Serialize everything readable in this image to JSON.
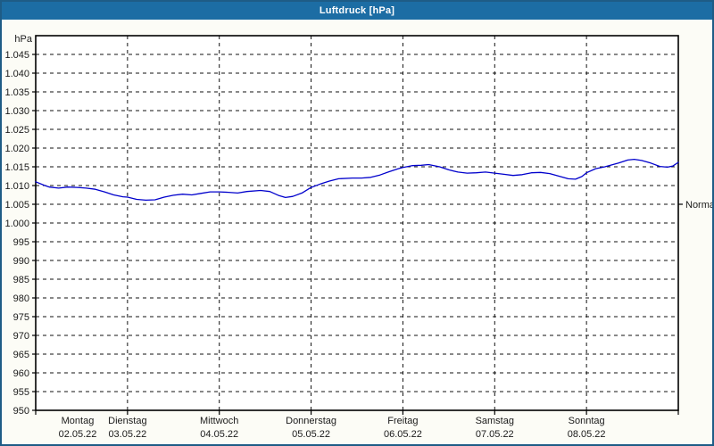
{
  "window": {
    "title": "Luftdruck [hPa]"
  },
  "colors": {
    "titlebar": "#1c6da4",
    "window_border": "#1e5c86",
    "window_bg": "#fcfcf6",
    "plot_bg": "#ffffff",
    "frame": "#000000",
    "grid": "#111111",
    "curve": "#0000cc",
    "text": "#1a1a1a",
    "title_text": "#ffffff"
  },
  "chart_data": {
    "type": "line",
    "title": "Luftdruck [hPa]",
    "ylabel": "hPa",
    "y_axis": {
      "min": 950,
      "max": 1050,
      "label_step": 5,
      "labeled_from": 950,
      "labeled_to": 1045,
      "number_format": "german-thousands-dot"
    },
    "x_axis": {
      "days": [
        {
          "name": "Montag",
          "date": "02.05.22"
        },
        {
          "name": "Dienstag",
          "date": "03.05.22"
        },
        {
          "name": "Mittwoch",
          "date": "04.05.22"
        },
        {
          "name": "Donnerstag",
          "date": "05.05.22"
        },
        {
          "name": "Freitag",
          "date": "06.05.22"
        },
        {
          "name": "Samstag",
          "date": "07.05.22"
        },
        {
          "name": "Sonntag",
          "date": "08.05.22"
        }
      ]
    },
    "grid": "dashed",
    "normal_marker": {
      "label": "Normal",
      "value": 1005
    },
    "series": [
      {
        "name": "Luftdruck",
        "color": "#0000cc",
        "x_days": [
          0,
          0.1,
          0.15,
          0.25,
          0.35,
          0.45,
          0.55,
          0.65,
          0.75,
          0.85,
          0.95,
          1.0,
          1.1,
          1.2,
          1.3,
          1.4,
          1.5,
          1.6,
          1.7,
          1.8,
          1.9,
          2.0,
          2.1,
          2.2,
          2.3,
          2.45,
          2.55,
          2.65,
          2.72,
          2.8,
          2.9,
          3.0,
          3.1,
          3.2,
          3.3,
          3.45,
          3.55,
          3.65,
          3.75,
          3.85,
          3.95,
          4.0,
          4.1,
          4.2,
          4.28,
          4.4,
          4.5,
          4.6,
          4.7,
          4.8,
          4.9,
          5.0,
          5.1,
          5.2,
          5.3,
          5.4,
          5.5,
          5.6,
          5.7,
          5.8,
          5.88,
          5.95,
          6.0,
          6.1,
          6.2,
          6.35,
          6.45,
          6.52,
          6.6,
          6.7,
          6.8,
          6.88,
          6.94,
          7.0
        ],
        "values": [
          1011.0,
          1010.0,
          1009.6,
          1009.3,
          1009.6,
          1009.5,
          1009.3,
          1009.0,
          1008.3,
          1007.5,
          1007.0,
          1006.9,
          1006.3,
          1006.1,
          1006.2,
          1006.9,
          1007.4,
          1007.7,
          1007.5,
          1007.9,
          1008.3,
          1008.3,
          1008.2,
          1008.0,
          1008.4,
          1008.7,
          1008.4,
          1007.3,
          1006.8,
          1007.1,
          1008.0,
          1009.5,
          1010.4,
          1011.2,
          1011.8,
          1012.0,
          1012.0,
          1012.2,
          1012.8,
          1013.7,
          1014.5,
          1014.8,
          1015.3,
          1015.4,
          1015.6,
          1015.0,
          1014.2,
          1013.6,
          1013.3,
          1013.4,
          1013.6,
          1013.3,
          1013.0,
          1012.7,
          1012.9,
          1013.4,
          1013.5,
          1013.2,
          1012.5,
          1011.8,
          1011.7,
          1012.4,
          1013.4,
          1014.5,
          1015.0,
          1016.0,
          1016.8,
          1017.0,
          1016.7,
          1016.0,
          1015.1,
          1014.9,
          1015.2,
          1016.2
        ]
      }
    ]
  }
}
